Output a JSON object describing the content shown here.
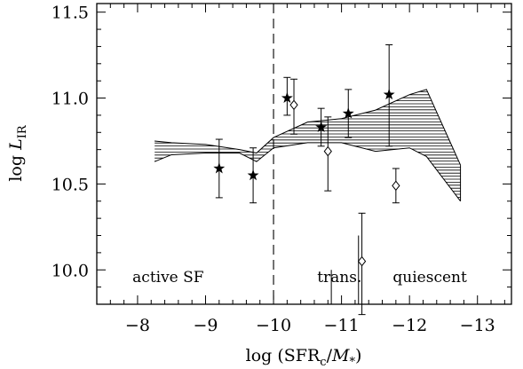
{
  "chart_data": {
    "type": "scatter",
    "title": "",
    "xlabel": {
      "prefix": "log (SFR",
      "sub1": "c",
      "mid": "/",
      "italic": "M",
      "sub2": "*",
      "suffix": ")"
    },
    "ylabel": {
      "prefix": "log ",
      "italic": "L",
      "sub": "IR"
    },
    "xlim": [
      -7.4,
      -13.5
    ],
    "ylim": [
      9.8,
      11.55
    ],
    "xticks": [
      -8,
      -9,
      -10,
      -11,
      -12,
      -13
    ],
    "xtick_labels": [
      "−8",
      "−9",
      "−10",
      "−11",
      "−12",
      "−13"
    ],
    "yticks": [
      10.0,
      10.5,
      11.0,
      11.5
    ],
    "ytick_labels": [
      "10.0",
      "10.5",
      "11.0",
      "11.5"
    ],
    "divider_x": -10,
    "region_labels": [
      {
        "text": "active SF",
        "x": -8.45
      },
      {
        "text": "trans.",
        "x": -10.97
      },
      {
        "text": "quiescent",
        "x": -12.3
      }
    ],
    "band": {
      "x": [
        -8.25,
        -8.5,
        -9.0,
        -9.5,
        -9.75,
        -10.0,
        -10.5,
        -11.0,
        -11.5,
        -12.0,
        -12.25,
        -12.75
      ],
      "upper": [
        10.75,
        10.74,
        10.73,
        10.7,
        10.68,
        10.77,
        10.86,
        10.88,
        10.93,
        11.02,
        11.05,
        10.61
      ],
      "lower": [
        10.63,
        10.67,
        10.68,
        10.68,
        10.63,
        10.71,
        10.74,
        10.74,
        10.69,
        10.71,
        10.66,
        10.4
      ]
    },
    "series": [
      {
        "marker": "star",
        "x": [
          -9.2,
          -9.7,
          -10.2,
          -10.7,
          -11.1,
          -11.7
        ],
        "y": [
          10.59,
          10.55,
          11.0,
          10.83,
          10.91,
          11.02
        ],
        "err_low": [
          0.17,
          0.16,
          0.1,
          0.11,
          0.14,
          0.3
        ],
        "err_high": [
          0.17,
          0.16,
          0.12,
          0.11,
          0.14,
          0.29
        ]
      },
      {
        "marker": "diamond",
        "x": [
          -10.3,
          -10.8,
          -11.3,
          -11.8
        ],
        "y": [
          10.96,
          10.69,
          10.05,
          10.49
        ],
        "err_low": [
          0.17,
          0.23,
          0.31,
          0.1
        ],
        "err_high": [
          0.15,
          0.2,
          0.28,
          0.1
        ]
      }
    ],
    "upper_limits": [
      {
        "x": -10.85,
        "from": 9.8,
        "to": 10.0
      },
      {
        "x": -11.25,
        "from": 9.8,
        "to": 10.2
      }
    ]
  }
}
